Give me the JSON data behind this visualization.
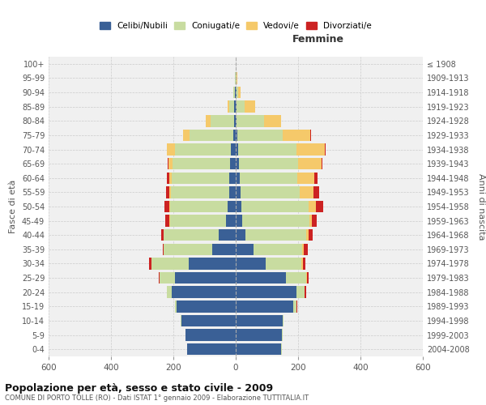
{
  "age_groups_bottom_to_top": [
    "0-4",
    "5-9",
    "10-14",
    "15-19",
    "20-24",
    "25-29",
    "30-34",
    "35-39",
    "40-44",
    "45-49",
    "50-54",
    "55-59",
    "60-64",
    "65-69",
    "70-74",
    "75-79",
    "80-84",
    "85-89",
    "90-94",
    "95-99",
    "100+"
  ],
  "birth_years_bottom_to_top": [
    "2004-2008",
    "1999-2003",
    "1994-1998",
    "1989-1993",
    "1984-1988",
    "1979-1983",
    "1974-1978",
    "1969-1973",
    "1964-1968",
    "1959-1963",
    "1954-1958",
    "1949-1953",
    "1944-1948",
    "1939-1943",
    "1934-1938",
    "1929-1933",
    "1924-1928",
    "1919-1923",
    "1914-1918",
    "1909-1913",
    "≤ 1908"
  ],
  "males": {
    "celibi": [
      155,
      160,
      175,
      190,
      205,
      195,
      150,
      75,
      55,
      30,
      25,
      22,
      20,
      18,
      15,
      8,
      5,
      4,
      2,
      1,
      1
    ],
    "coniugati": [
      2,
      2,
      2,
      5,
      15,
      50,
      120,
      155,
      175,
      180,
      185,
      185,
      185,
      185,
      180,
      140,
      75,
      18,
      5,
      2,
      0
    ],
    "vedovi": [
      0,
      0,
      0,
      0,
      0,
      0,
      0,
      0,
      2,
      3,
      4,
      5,
      8,
      12,
      25,
      20,
      15,
      5,
      2,
      0,
      0
    ],
    "divorziati": [
      0,
      0,
      0,
      1,
      1,
      3,
      8,
      5,
      8,
      12,
      15,
      12,
      8,
      3,
      2,
      1,
      0,
      0,
      0,
      0,
      0
    ]
  },
  "females": {
    "nubili": [
      145,
      148,
      150,
      185,
      195,
      160,
      95,
      58,
      32,
      22,
      18,
      15,
      12,
      10,
      8,
      5,
      3,
      3,
      2,
      1,
      0
    ],
    "coniugate": [
      2,
      2,
      3,
      10,
      25,
      65,
      115,
      155,
      195,
      215,
      215,
      190,
      185,
      190,
      188,
      145,
      88,
      25,
      5,
      2,
      0
    ],
    "vedove": [
      0,
      0,
      0,
      1,
      2,
      3,
      5,
      5,
      8,
      8,
      25,
      45,
      55,
      75,
      90,
      90,
      55,
      35,
      8,
      2,
      0
    ],
    "divorziate": [
      0,
      0,
      0,
      1,
      3,
      5,
      8,
      12,
      12,
      15,
      22,
      18,
      10,
      3,
      2,
      1,
      0,
      0,
      0,
      0,
      0
    ]
  },
  "colors": {
    "celibi": "#3a6096",
    "coniugati": "#c8dca0",
    "vedovi": "#f5c96a",
    "divorziati": "#cc2222"
  },
  "xlim": 600,
  "title": "Popolazione per età, sesso e stato civile - 2009",
  "subtitle": "COMUNE DI PORTO TOLLE (RO) - Dati ISTAT 1° gennaio 2009 - Elaborazione TUTTITALIA.IT",
  "ylabel_left": "Fasce di età",
  "ylabel_right": "Anni di nascita",
  "xlabel_right": "Femmine",
  "bg_color": "#f0f0f0",
  "grid_color": "#cccccc"
}
